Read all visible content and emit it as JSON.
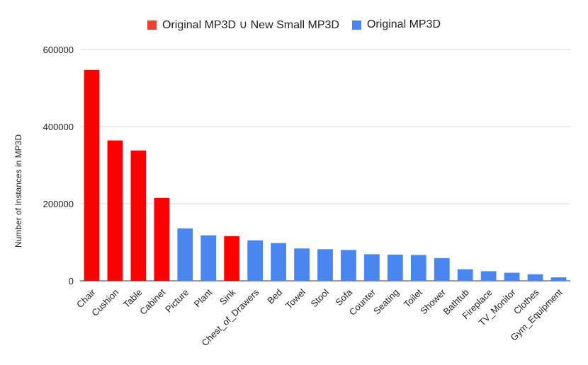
{
  "colors": {
    "highlight": "#ff0000",
    "base": "#4a86f0",
    "grid": "#d9d9d9",
    "text": "#222222"
  },
  "legend": [
    {
      "label": "Original MP3D ∪ New Small MP3D",
      "color": "#ea4335"
    },
    {
      "label": "Original MP3D",
      "color": "#4a86f0"
    }
  ],
  "chart_data": {
    "type": "bar",
    "title": "",
    "xlabel": "",
    "ylabel": "Number of Instances in MP3D",
    "ylim": [
      0,
      600000
    ],
    "yticks": [
      0,
      200000,
      400000,
      600000
    ],
    "categories": [
      "Chair",
      "Cushion",
      "Table",
      "Cabinet",
      "Picture",
      "Plant",
      "Sink",
      "Chest_of_Drawers",
      "Bed",
      "Towel",
      "Stool",
      "Sofa",
      "Counter",
      "Seating",
      "Toilet",
      "Shower",
      "Bathtub",
      "Fireplace",
      "TV_Monitor",
      "Clothes",
      "Gym_Equipment"
    ],
    "values": [
      547000,
      364000,
      338000,
      215000,
      136000,
      118000,
      116000,
      105000,
      98000,
      84000,
      82000,
      80000,
      69000,
      68000,
      67000,
      59000,
      30000,
      25000,
      21000,
      17000,
      9000
    ],
    "highlight": [
      true,
      true,
      true,
      true,
      false,
      false,
      true,
      false,
      false,
      false,
      false,
      false,
      false,
      false,
      false,
      false,
      false,
      false,
      false,
      false,
      false
    ],
    "series": [
      {
        "name": "Original MP3D ∪ New Small MP3D",
        "color": "#ff0000"
      },
      {
        "name": "Original MP3D",
        "color": "#4a86f0"
      }
    ]
  }
}
